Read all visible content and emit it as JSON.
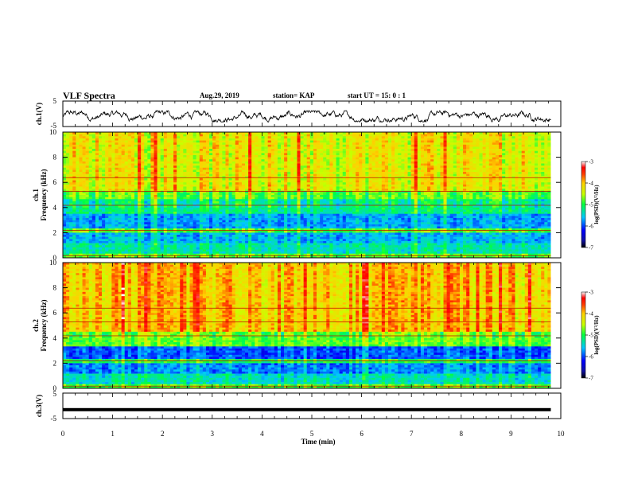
{
  "header": {
    "title": "VLF Spectra",
    "date": "Aug.29, 2019",
    "station": "station= KAP",
    "start": "start UT =  15: 0 : 1"
  },
  "chart_data": [
    {
      "type": "line",
      "panel": "ch1-waveform",
      "ylabel": "ch.1(V)",
      "ylim": [
        -5,
        5
      ],
      "yticks": [
        "5",
        "-5"
      ],
      "xlim": [
        0,
        10
      ],
      "note_values": "noise waveform approx. between -3 and 1 V around -1 V over 0-9.8 min"
    },
    {
      "type": "heatmap",
      "panel": "ch1-spectrogram",
      "ylabel_top": "ch.1",
      "ylabel": "Frequency (kHz)",
      "ylim": [
        0,
        10
      ],
      "yticks": [
        "0",
        "2",
        "4",
        "6",
        "8",
        "10"
      ],
      "xlim": [
        0,
        10
      ],
      "colorbar": {
        "label": "log(PSD)(V²/Hz)",
        "range": [
          -7,
          -3
        ],
        "ticks": [
          "-3",
          "-4",
          "-5",
          "-6",
          "-7"
        ]
      }
    },
    {
      "type": "heatmap",
      "panel": "ch2-spectrogram",
      "ylabel_top": "ch.2",
      "ylabel": "Frequency (kHz)",
      "ylim": [
        0,
        10
      ],
      "yticks": [
        "0",
        "2",
        "4",
        "6",
        "8",
        "10"
      ],
      "xlim": [
        0,
        10
      ],
      "colorbar": {
        "label": "log(PSD)(V²/Hz)",
        "range": [
          -7,
          -3
        ],
        "ticks": [
          "-3",
          "-4",
          "-5",
          "-6",
          "-7"
        ]
      }
    },
    {
      "type": "line",
      "panel": "ch3-waveform",
      "ylabel": "ch.3(V)",
      "ylim": [
        -5,
        5
      ],
      "yticks": [
        "5",
        "-5"
      ],
      "xlim": [
        0,
        10
      ],
      "note_values": "constant approx. -1.5 V from 0 to 9.8 min"
    }
  ],
  "xaxis": {
    "label": "Time (min)",
    "ticks": [
      "0",
      "1",
      "2",
      "3",
      "4",
      "5",
      "6",
      "7",
      "8",
      "9",
      "10"
    ]
  }
}
